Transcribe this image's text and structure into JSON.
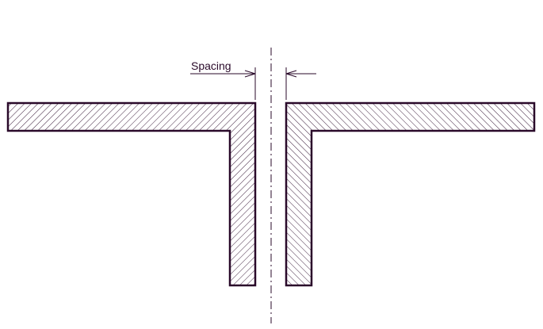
{
  "dimension": {
    "label": "Spacing"
  },
  "colors": {
    "outline": "#2a0a2a",
    "hatch": "#2a0a2a",
    "dimension_line": "#2a0a2a",
    "centerline": "#2a0a2a",
    "text": "#2a0a2a",
    "background": "#ffffff"
  }
}
